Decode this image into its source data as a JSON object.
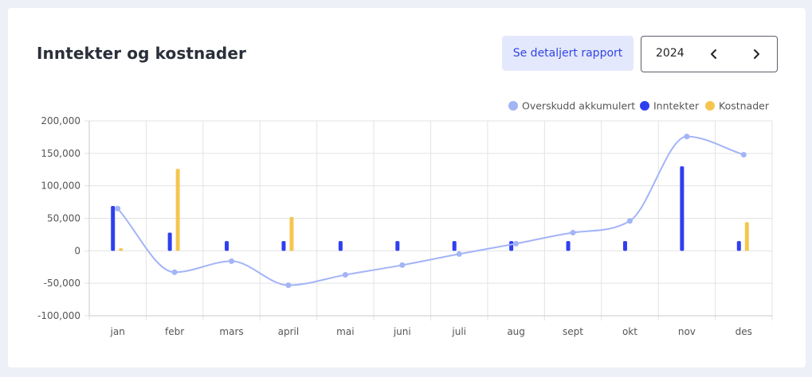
{
  "header": {
    "title": "Inntekter og kostnader",
    "report_button": "Se detaljert rapport",
    "year": "2024"
  },
  "colors": {
    "income": "#2f3ff0",
    "costs": "#f5c64f",
    "surplus": "#a3b4f7",
    "grid": "#e3e3e3",
    "axis": "#c8c8c8"
  },
  "chart_data": {
    "type": "bar+line",
    "title": "Inntekter og kostnader",
    "categories": [
      "jan",
      "febr",
      "mars",
      "april",
      "mai",
      "juni",
      "juli",
      "aug",
      "sept",
      "okt",
      "nov",
      "des"
    ],
    "y_ticks": [
      "200,000",
      "150,000",
      "100,000",
      "50,000",
      "0",
      "-50,000",
      "-100,000"
    ],
    "ylim": [
      -100000,
      200000
    ],
    "legend": [
      "Overskudd akkumulert",
      "Inntekter",
      "Kostnader"
    ],
    "legend_position": "top-right",
    "series": [
      {
        "name": "Inntekter",
        "kind": "bar",
        "values": [
          69000,
          28000,
          15000,
          15000,
          15000,
          15000,
          15000,
          15000,
          15000,
          15000,
          130000,
          15000
        ]
      },
      {
        "name": "Kostnader",
        "kind": "bar",
        "values": [
          4000,
          126000,
          0,
          52000,
          0,
          0,
          0,
          0,
          0,
          0,
          0,
          44000
        ]
      },
      {
        "name": "Overskudd akkumulert",
        "kind": "line",
        "values": [
          65000,
          -33000,
          -16000,
          -53000,
          -37000,
          -22000,
          -5000,
          11000,
          28000,
          46000,
          176000,
          148000
        ]
      }
    ]
  }
}
